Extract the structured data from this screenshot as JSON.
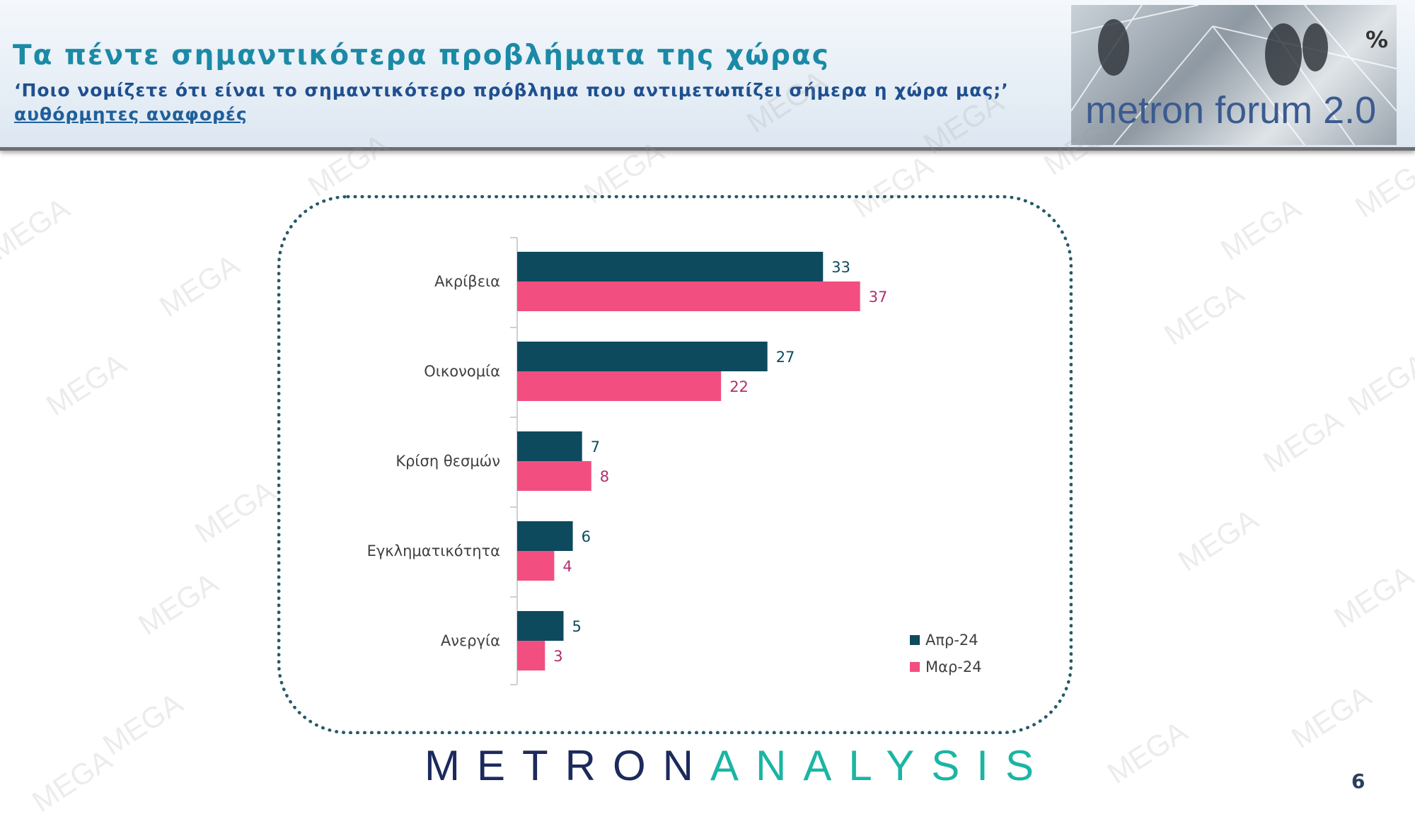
{
  "header": {
    "title": "Τα πέντε σημαντικότερα προβλήματα της χώρας",
    "subtitle": "‘Ποιο νομίζετε ότι είναι το σημαντικότερο πρόβλημα που αντιμετωπίζει σήμερα η χώρα μας;’",
    "note": "αυθόρμητες αναφορές"
  },
  "logo": {
    "text": "metron forum 2.0",
    "symbol": "%"
  },
  "watermark": "MEGA",
  "brand": {
    "part1": "METRON",
    "part2": "ANALYSIS"
  },
  "page_number": "6",
  "colors": {
    "series1": "#0d4a5e",
    "series2": "#f24f80",
    "label1": "#0d4a5e",
    "label2": "#b0306a"
  },
  "chart_data": {
    "type": "bar",
    "orientation": "horizontal",
    "categories": [
      "Ακρίβεια",
      "Οικονομία",
      "Κρίση θεσμών",
      "Εγκληματικότητα",
      "Ανεργία"
    ],
    "series": [
      {
        "name": "Απρ-24",
        "values": [
          33,
          27,
          7,
          6,
          5
        ]
      },
      {
        "name": "Μαρ-24",
        "values": [
          37,
          22,
          8,
          4,
          3
        ]
      }
    ],
    "data_labels": true,
    "legend_position": "bottom-right",
    "grid": false
  }
}
